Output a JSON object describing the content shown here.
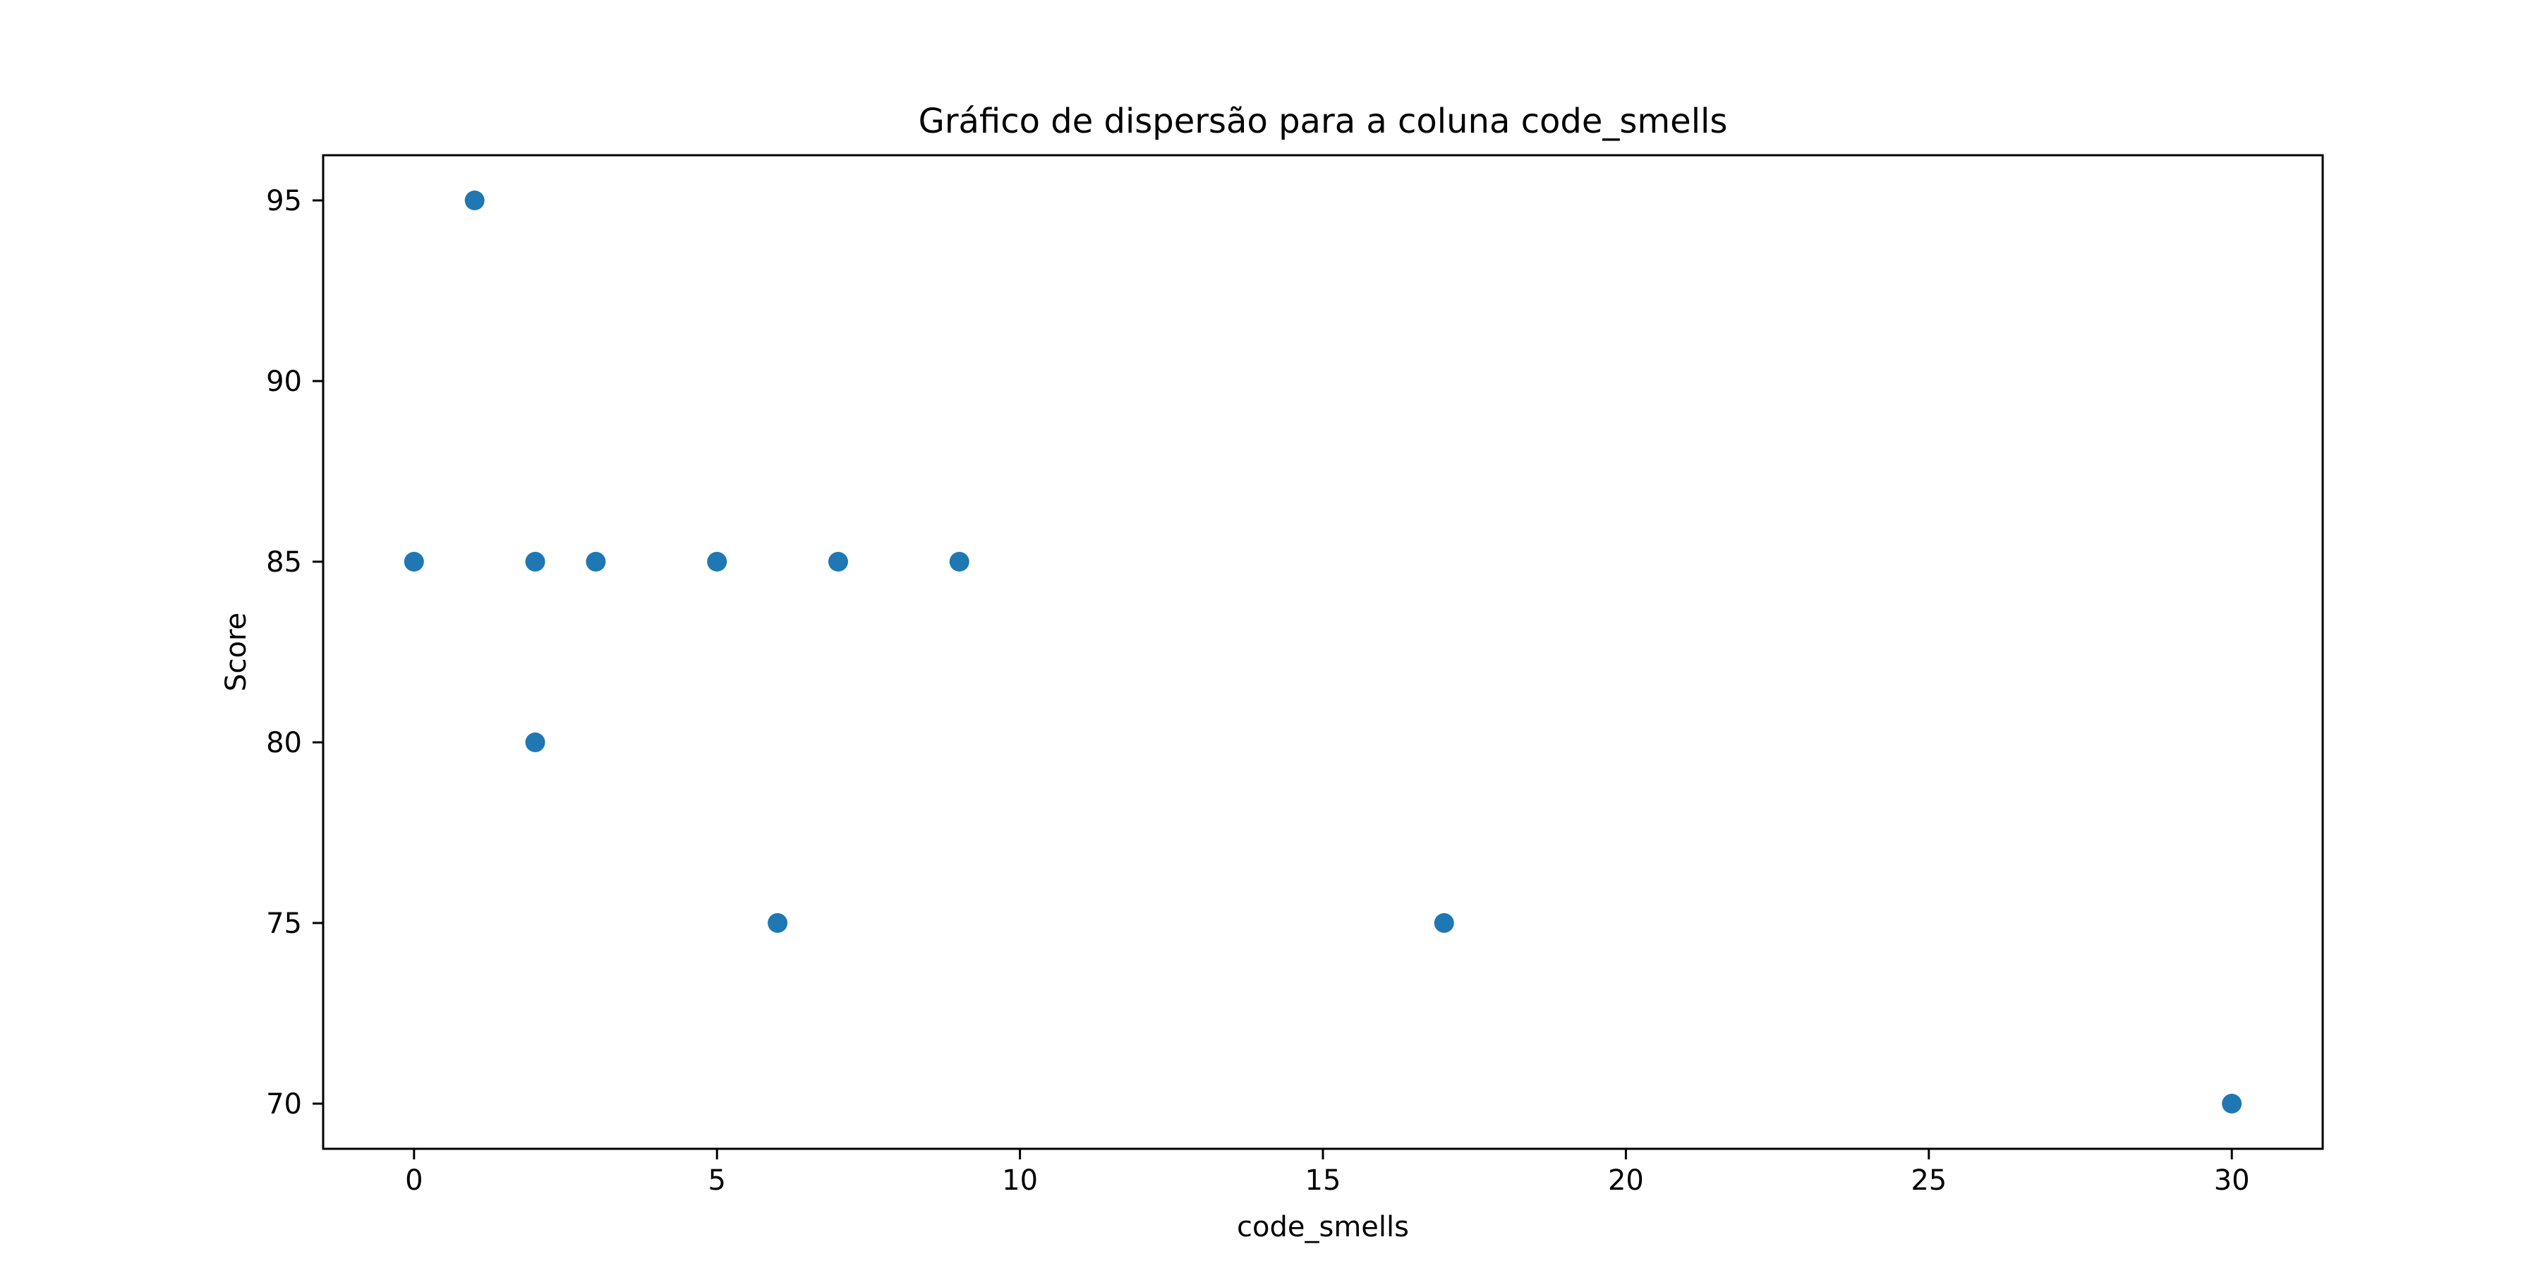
{
  "chart_data": {
    "type": "scatter",
    "title": "Gráfico de dispersão para a coluna code_smells",
    "xlabel": "code_smells",
    "ylabel": "Score",
    "xlim": [
      -1.5,
      31.5
    ],
    "ylim": [
      68.75,
      96.25
    ],
    "xticks": [
      0,
      5,
      10,
      15,
      20,
      25,
      30
    ],
    "yticks": [
      70,
      75,
      80,
      85,
      90,
      95
    ],
    "grid": false,
    "marker_color": "#1f77b4",
    "points": [
      {
        "x": 0,
        "y": 85
      },
      {
        "x": 1,
        "y": 95
      },
      {
        "x": 2,
        "y": 85
      },
      {
        "x": 2,
        "y": 80
      },
      {
        "x": 3,
        "y": 85
      },
      {
        "x": 5,
        "y": 85
      },
      {
        "x": 6,
        "y": 75
      },
      {
        "x": 7,
        "y": 85
      },
      {
        "x": 9,
        "y": 85
      },
      {
        "x": 17,
        "y": 75
      },
      {
        "x": 30,
        "y": 70
      }
    ]
  }
}
